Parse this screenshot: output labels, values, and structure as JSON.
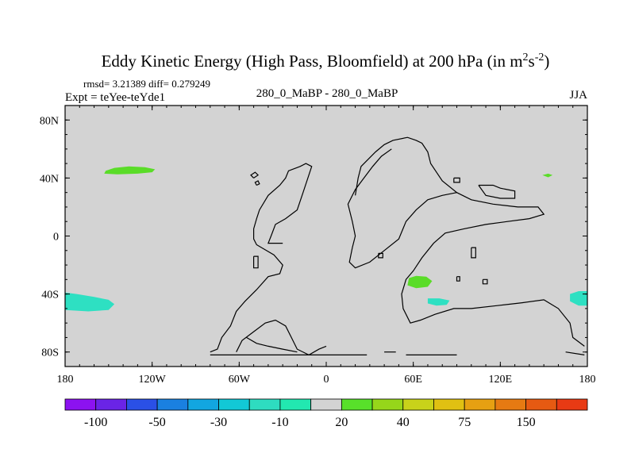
{
  "chart_data": {
    "type": "heatmap",
    "title": {
      "main": "Eddy Kinetic Energy (High Pass, Bloomfield) at 200 hPa (in m",
      "sup1": "2",
      "mid": "s",
      "sup2": "-2",
      "end": ")"
    },
    "stats": "rmsd= 3.21389 diff= 0.279249",
    "left_label": "Expt = teYee-teYde1",
    "center_label": "280_0_MaBP - 280_0_MaBP",
    "right_label": "JJA",
    "x_range": [
      -180,
      180
    ],
    "y_range": [
      -90,
      90
    ],
    "x_ticks": [
      {
        "value": -180,
        "label": "180"
      },
      {
        "value": -120,
        "label": "120W"
      },
      {
        "value": -60,
        "label": "60W"
      },
      {
        "value": 0,
        "label": "0"
      },
      {
        "value": 60,
        "label": "60E"
      },
      {
        "value": 120,
        "label": "120E"
      },
      {
        "value": 180,
        "label": "180"
      }
    ],
    "y_ticks": [
      {
        "value": 80,
        "label": "80N"
      },
      {
        "value": 40,
        "label": "40N"
      },
      {
        "value": 0,
        "label": "0"
      },
      {
        "value": -40,
        "label": "40S"
      },
      {
        "value": -80,
        "label": "80S"
      }
    ],
    "background_color": "#d3d3d3",
    "colorbar": {
      "colors": [
        "#8c12f0",
        "#6a24e6",
        "#2a50e6",
        "#1a80e0",
        "#12a6e0",
        "#12c8d6",
        "#2edcc0",
        "#22e8b0",
        "#d3d3d3",
        "#58e02a",
        "#96d61a",
        "#c8d21a",
        "#e0c012",
        "#e6a012",
        "#e67a12",
        "#e65a12",
        "#e83a14"
      ],
      "labels": [
        {
          "boundary": 1,
          "text": "-100"
        },
        {
          "boundary": 3,
          "text": "-50"
        },
        {
          "boundary": 5,
          "text": "-30"
        },
        {
          "boundary": 7,
          "text": "-10"
        },
        {
          "boundary": 9,
          "text": "20"
        },
        {
          "boundary": 11,
          "text": "40"
        },
        {
          "boundary": 13,
          "text": "75"
        },
        {
          "boundary": 15,
          "text": "150"
        }
      ]
    },
    "anomalies": [
      {
        "name": "pacific-north",
        "color": "#5adc28",
        "points": [
          [
            -152,
            45
          ],
          [
            -146,
            47
          ],
          [
            -136,
            48
          ],
          [
            -125,
            47.5
          ],
          [
            -118,
            46
          ],
          [
            -120,
            44
          ],
          [
            -130,
            43
          ],
          [
            -144,
            42.5
          ],
          [
            -153,
            43
          ]
        ]
      },
      {
        "name": "pacific-south",
        "color": "#2ee0c2",
        "points": [
          [
            -180,
            -39
          ],
          [
            -172,
            -40
          ],
          [
            -160,
            -42
          ],
          [
            -150,
            -44
          ],
          [
            -146,
            -47
          ],
          [
            -150,
            -51
          ],
          [
            -164,
            -52
          ],
          [
            -180,
            -51
          ]
        ]
      },
      {
        "name": "indian-ocean",
        "color": "#5adc28",
        "points": [
          [
            57,
            -29
          ],
          [
            62,
            -27.5
          ],
          [
            69,
            -28
          ],
          [
            73,
            -31
          ],
          [
            70,
            -35
          ],
          [
            62,
            -36
          ],
          [
            56,
            -34
          ]
        ]
      },
      {
        "name": "southern-ocean",
        "color": "#2ee0c2",
        "points": [
          [
            70,
            -43
          ],
          [
            78,
            -43
          ],
          [
            85,
            -44.5
          ],
          [
            83,
            -47.5
          ],
          [
            76,
            -48
          ],
          [
            70,
            -46.5
          ]
        ]
      },
      {
        "name": "east-pacific-north",
        "color": "#5adc28",
        "points": [
          [
            149,
            42
          ],
          [
            153,
            43
          ],
          [
            156,
            42
          ],
          [
            153,
            40.5
          ]
        ]
      },
      {
        "name": "east-pacific-south",
        "color": "#2ee0c2",
        "points": [
          [
            168,
            -40
          ],
          [
            174,
            -38
          ],
          [
            180,
            -38
          ],
          [
            180,
            -48
          ],
          [
            174,
            -48
          ],
          [
            168,
            -45
          ]
        ]
      }
    ],
    "coastlines": [
      {
        "name": "americas",
        "points": [
          [
            -80,
            -80
          ],
          [
            -75,
            -78
          ],
          [
            -72,
            -70
          ],
          [
            -66,
            -62
          ],
          [
            -62,
            -52
          ],
          [
            -56,
            -45
          ],
          [
            -48,
            -37
          ],
          [
            -40,
            -28
          ],
          [
            -32,
            -26
          ],
          [
            -30,
            -20
          ],
          [
            -36,
            -13
          ],
          [
            -48,
            -6
          ],
          [
            -50,
            -2
          ],
          [
            -50,
            5
          ],
          [
            -48,
            12
          ],
          [
            -46,
            18
          ],
          [
            -40,
            28
          ],
          [
            -32,
            35
          ],
          [
            -28,
            40
          ],
          [
            -26,
            45
          ],
          [
            -18,
            48
          ],
          [
            -14,
            50
          ],
          [
            -10,
            48
          ],
          [
            -12,
            42
          ],
          [
            -16,
            30
          ],
          [
            -20,
            18
          ],
          [
            -28,
            12
          ],
          [
            -35,
            8
          ],
          [
            -38,
            0
          ],
          [
            -40,
            -5
          ],
          [
            -30,
            -5
          ]
        ]
      },
      {
        "name": "eurasia",
        "points": [
          [
            20,
            28
          ],
          [
            22,
            40
          ],
          [
            24,
            48
          ],
          [
            30,
            54
          ],
          [
            34,
            58
          ],
          [
            40,
            63
          ],
          [
            46,
            66
          ],
          [
            56,
            68
          ],
          [
            62,
            66
          ],
          [
            66,
            64
          ],
          [
            70,
            58
          ],
          [
            72,
            50
          ],
          [
            76,
            44
          ],
          [
            80,
            38
          ],
          [
            90,
            30
          ],
          [
            100,
            25
          ],
          [
            115,
            22
          ],
          [
            132,
            20
          ],
          [
            146,
            20
          ],
          [
            150,
            15
          ],
          [
            140,
            12
          ],
          [
            125,
            10
          ],
          [
            110,
            8
          ],
          [
            95,
            5
          ],
          [
            82,
            2
          ],
          [
            74,
            -5
          ],
          [
            66,
            -15
          ],
          [
            60,
            -24
          ],
          [
            55,
            -30
          ],
          [
            52,
            -40
          ],
          [
            53,
            -50
          ],
          [
            58,
            -60
          ],
          [
            65,
            -58
          ],
          [
            75,
            -54
          ],
          [
            88,
            -50
          ],
          [
            100,
            -50
          ],
          [
            118,
            -48
          ],
          [
            135,
            -46
          ],
          [
            150,
            -44
          ],
          [
            160,
            -50
          ],
          [
            168,
            -60
          ],
          [
            170,
            -70
          ],
          [
            178,
            -76
          ]
        ]
      },
      {
        "name": "africa",
        "points": [
          [
            45,
            60
          ],
          [
            38,
            55
          ],
          [
            32,
            48
          ],
          [
            26,
            40
          ],
          [
            20,
            32
          ],
          [
            15,
            22
          ],
          [
            18,
            10
          ],
          [
            20,
            0
          ],
          [
            18,
            -8
          ],
          [
            16,
            -18
          ],
          [
            20,
            -22
          ],
          [
            30,
            -18
          ],
          [
            40,
            -10
          ],
          [
            50,
            -2
          ],
          [
            55,
            10
          ],
          [
            62,
            18
          ],
          [
            70,
            25
          ],
          [
            80,
            28
          ],
          [
            90,
            30
          ]
        ]
      },
      {
        "name": "antarctic-peninsula",
        "points": [
          [
            -62,
            -80
          ],
          [
            -58,
            -72
          ],
          [
            -50,
            -66
          ],
          [
            -42,
            -60
          ],
          [
            -35,
            -58
          ],
          [
            -28,
            -62
          ],
          [
            -24,
            -70
          ],
          [
            -20,
            -78
          ],
          [
            -12,
            -82
          ],
          [
            -5,
            -78
          ],
          [
            0,
            -76
          ]
        ]
      },
      {
        "name": "antarctic-shelf",
        "points": [
          [
            -55,
            -70
          ],
          [
            -48,
            -74
          ],
          [
            -40,
            -76
          ],
          [
            -30,
            -78
          ],
          [
            -20,
            -80
          ]
        ]
      },
      {
        "name": "antarctic-bottom",
        "points": [
          [
            -80,
            -82
          ],
          [
            -40,
            -82
          ],
          [
            0,
            -82
          ],
          [
            28,
            -82
          ]
        ]
      },
      {
        "name": "antarctic-east",
        "points": [
          [
            55,
            -82
          ],
          [
            90,
            -82
          ]
        ]
      },
      {
        "name": "antarctic-segment",
        "points": [
          [
            40,
            -80
          ],
          [
            48,
            -80
          ]
        ]
      },
      {
        "name": "antarctic-far-east",
        "points": [
          [
            165,
            -80
          ],
          [
            178,
            -82
          ]
        ]
      },
      {
        "name": "island-north-a",
        "points": [
          [
            -50,
            40
          ],
          [
            -47,
            42
          ],
          [
            -49,
            44
          ],
          [
            -52,
            42
          ],
          [
            -50,
            40
          ]
        ]
      },
      {
        "name": "island-north-b",
        "points": [
          [
            -48,
            35
          ],
          [
            -46,
            36
          ],
          [
            -47,
            38
          ],
          [
            -49,
            37
          ],
          [
            -48,
            35
          ]
        ]
      },
      {
        "name": "island-ocean-a",
        "points": [
          [
            -50,
            -14
          ],
          [
            -47,
            -14
          ],
          [
            -47,
            -22
          ],
          [
            -50,
            -22
          ],
          [
            -50,
            -14
          ]
        ]
      },
      {
        "name": "island-ocean-b",
        "points": [
          [
            36,
            -12
          ],
          [
            39,
            -12
          ],
          [
            39,
            -15
          ],
          [
            36,
            -15
          ],
          [
            36,
            -12
          ]
        ]
      },
      {
        "name": "island-ocean-c",
        "points": [
          [
            100,
            -8
          ],
          [
            103,
            -8
          ],
          [
            103,
            -15
          ],
          [
            100,
            -15
          ],
          [
            100,
            -8
          ]
        ]
      },
      {
        "name": "island-ocean-d",
        "points": [
          [
            108,
            -30
          ],
          [
            111,
            -30
          ],
          [
            111,
            -33
          ],
          [
            108,
            -33
          ],
          [
            108,
            -30
          ]
        ]
      },
      {
        "name": "island-ocean-e",
        "points": [
          [
            90,
            -28
          ],
          [
            92,
            -28
          ],
          [
            92,
            -31
          ],
          [
            90,
            -31
          ],
          [
            90,
            -28
          ]
        ]
      },
      {
        "name": "east-asia-block",
        "points": [
          [
            105,
            35
          ],
          [
            115,
            35
          ],
          [
            120,
            33
          ],
          [
            130,
            31
          ],
          [
            130,
            26
          ],
          [
            120,
            26
          ],
          [
            110,
            28
          ],
          [
            105,
            35
          ]
        ]
      },
      {
        "name": "east-islands",
        "points": [
          [
            88,
            40
          ],
          [
            92,
            40
          ],
          [
            92,
            37
          ],
          [
            88,
            37
          ],
          [
            88,
            40
          ]
        ]
      }
    ]
  }
}
